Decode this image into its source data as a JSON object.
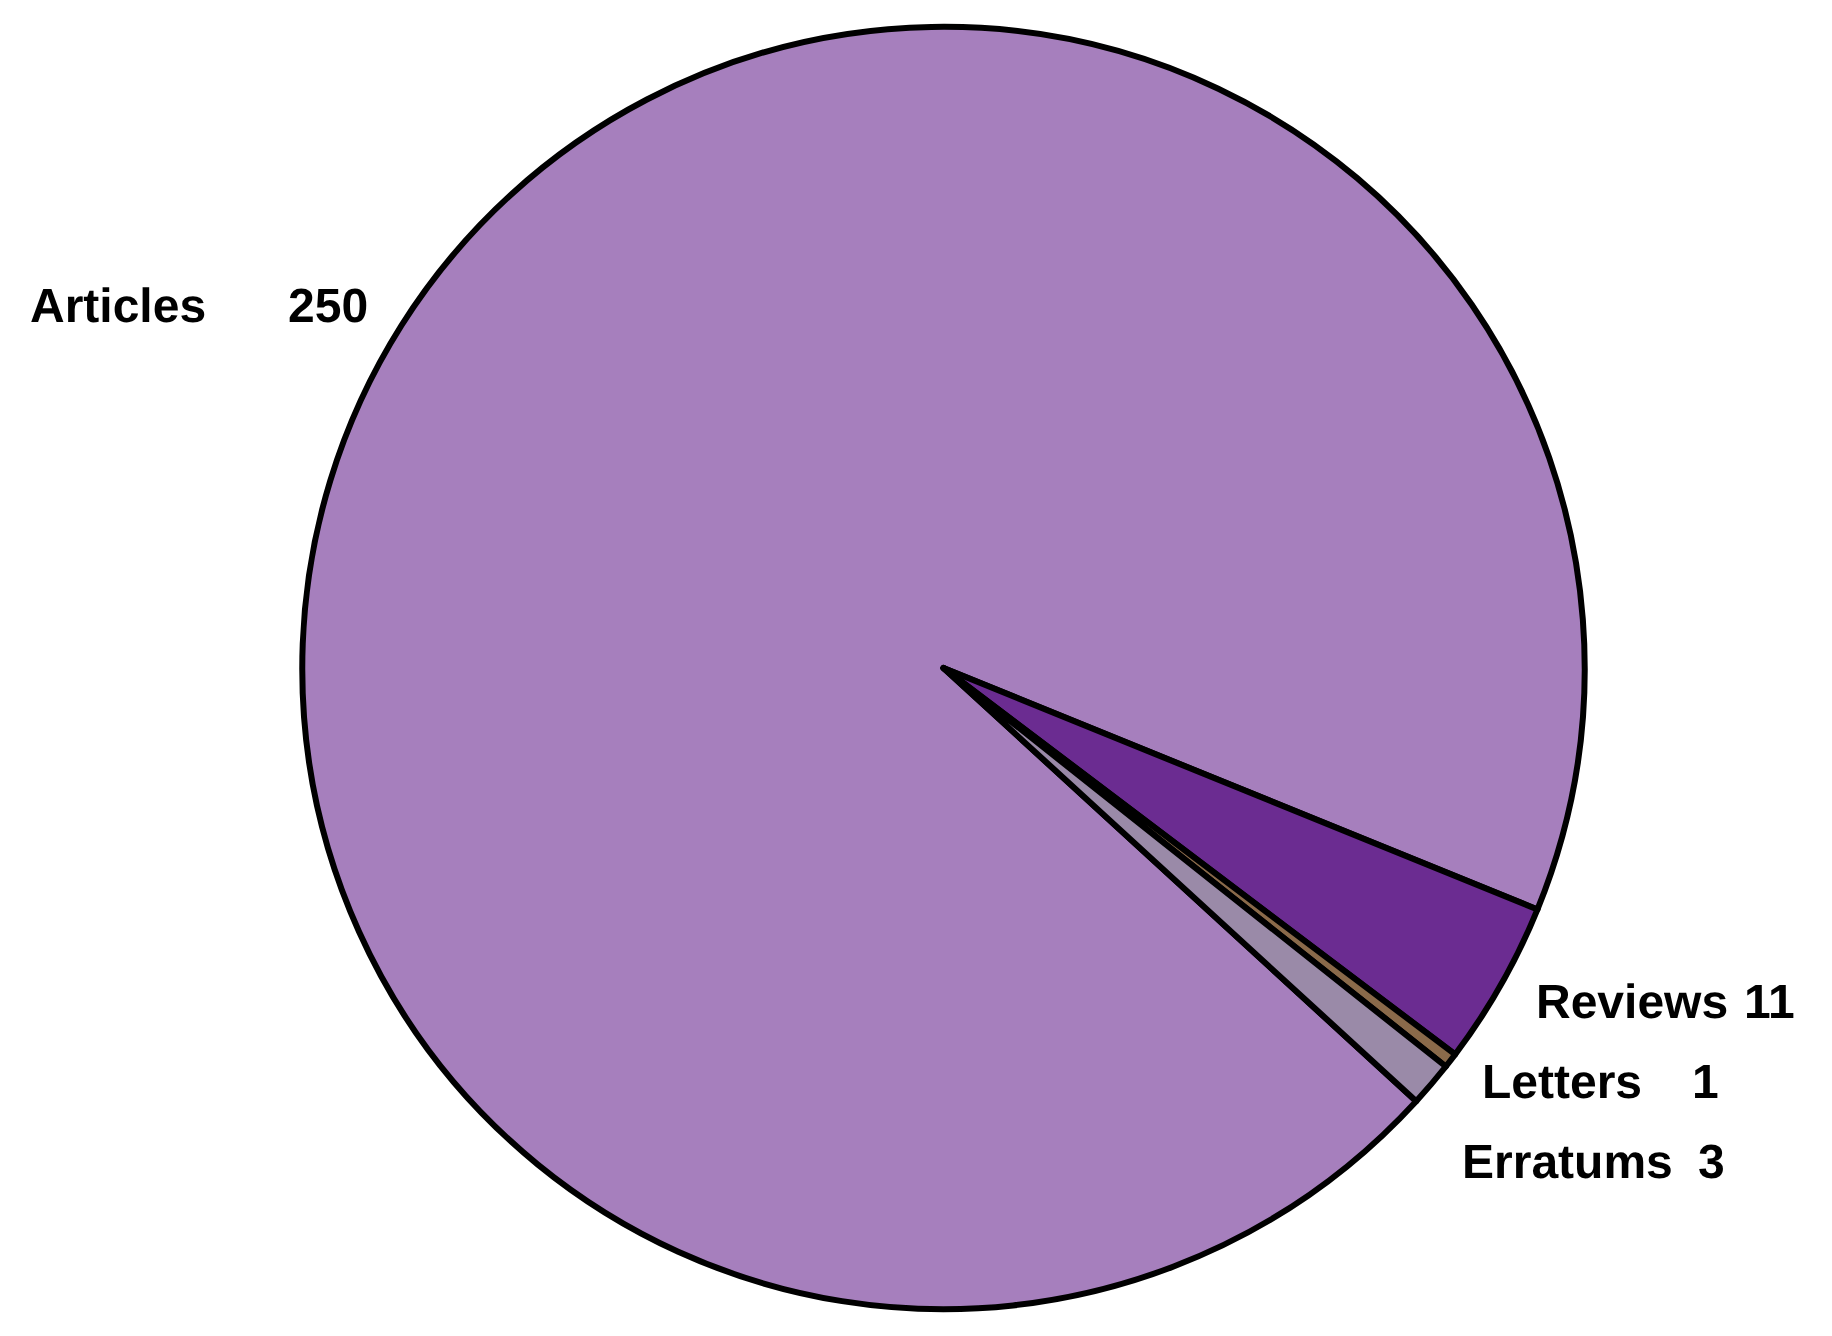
{
  "chart_data": {
    "type": "pie",
    "categories": [
      "Articles",
      "Reviews",
      "Letters",
      "Erratums"
    ],
    "values": [
      250,
      11,
      1,
      3
    ],
    "colors": [
      "#a67fbd",
      "#6b2c91",
      "#8a6a4a",
      "#9a8aa8"
    ],
    "data_labels": true,
    "legend": false
  }
}
